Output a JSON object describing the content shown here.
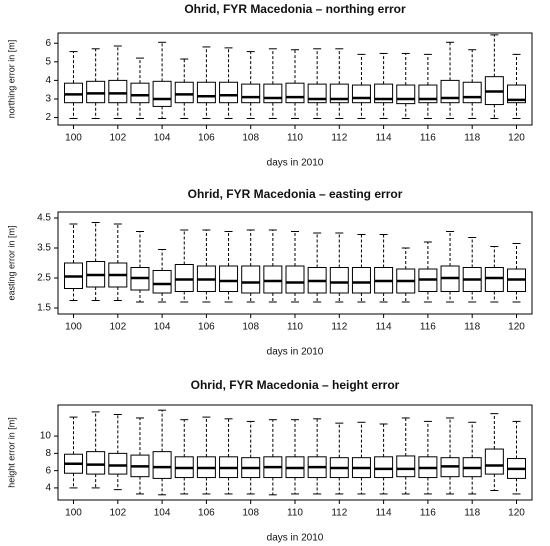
{
  "chart_data": [
    {
      "type": "box",
      "title": "Ohrid, FYR Macedonia – northing error",
      "x_label": "days in 2010",
      "y_label": "northing error in [m]",
      "x": [
        100,
        101,
        102,
        103,
        104,
        105,
        106,
        107,
        108,
        109,
        110,
        111,
        112,
        113,
        114,
        115,
        116,
        117,
        118,
        119,
        120
      ],
      "xlim": [
        99.3,
        120.7
      ],
      "xticks": [
        100,
        102,
        104,
        106,
        108,
        110,
        112,
        114,
        116,
        118,
        120
      ],
      "ylim": [
        1.6,
        6.55
      ],
      "yticks": [
        2,
        3,
        4,
        5,
        6
      ],
      "color": "#ffffff",
      "line_color": "#000000",
      "min": [
        1.95,
        1.95,
        1.95,
        1.95,
        1.95,
        1.95,
        1.95,
        1.95,
        1.95,
        1.95,
        1.95,
        1.95,
        1.95,
        1.95,
        1.95,
        1.95,
        1.95,
        1.95,
        1.95,
        1.95,
        1.95
      ],
      "q1": [
        2.8,
        2.8,
        2.8,
        2.8,
        2.6,
        2.8,
        2.8,
        2.8,
        2.8,
        2.8,
        2.8,
        2.8,
        2.8,
        2.8,
        2.8,
        2.75,
        2.8,
        2.8,
        2.8,
        2.7,
        2.8
      ],
      "median": [
        3.25,
        3.3,
        3.3,
        3.2,
        3.0,
        3.25,
        3.15,
        3.2,
        3.1,
        3.05,
        3.1,
        3.0,
        3.0,
        3.05,
        3.0,
        3.0,
        3.0,
        3.05,
        3.1,
        3.4,
        2.95
      ],
      "q3": [
        3.85,
        3.95,
        4.0,
        3.85,
        3.95,
        3.9,
        3.9,
        3.9,
        3.8,
        3.8,
        3.85,
        3.8,
        3.8,
        3.75,
        3.8,
        3.75,
        3.75,
        4.0,
        3.9,
        4.2,
        3.75
      ],
      "max": [
        5.55,
        5.7,
        5.85,
        5.2,
        6.05,
        5.15,
        5.8,
        5.75,
        5.55,
        5.7,
        5.65,
        5.7,
        5.7,
        5.4,
        5.45,
        5.45,
        5.4,
        6.05,
        5.65,
        6.45,
        5.4
      ]
    },
    {
      "type": "box",
      "title": "Ohrid, FYR Macedonia – easting error",
      "x_label": "days in 2010",
      "y_label": "easting error in [m]",
      "x": [
        100,
        101,
        102,
        103,
        104,
        105,
        106,
        107,
        108,
        109,
        110,
        111,
        112,
        113,
        114,
        115,
        116,
        117,
        118,
        119,
        120
      ],
      "xlim": [
        99.3,
        120.7
      ],
      "xticks": [
        100,
        102,
        104,
        106,
        108,
        110,
        112,
        114,
        116,
        118,
        120
      ],
      "ylim": [
        1.3,
        4.7
      ],
      "yticks": [
        1.5,
        2.5,
        3.5,
        4.5
      ],
      "color": "#ffffff",
      "line_color": "#000000",
      "min": [
        1.75,
        1.75,
        1.75,
        1.7,
        1.7,
        1.7,
        1.7,
        1.7,
        1.7,
        1.7,
        1.7,
        1.7,
        1.7,
        1.7,
        1.7,
        1.7,
        1.7,
        1.7,
        1.7,
        1.7,
        1.7
      ],
      "q1": [
        2.15,
        2.2,
        2.2,
        2.1,
        2.0,
        2.05,
        2.05,
        2.05,
        2.0,
        2.0,
        2.0,
        2.0,
        2.0,
        2.0,
        2.0,
        2.0,
        2.05,
        2.05,
        2.05,
        2.05,
        2.05
      ],
      "median": [
        2.55,
        2.6,
        2.6,
        2.5,
        2.3,
        2.45,
        2.45,
        2.4,
        2.35,
        2.4,
        2.35,
        2.4,
        2.35,
        2.35,
        2.4,
        2.4,
        2.45,
        2.5,
        2.45,
        2.5,
        2.45
      ],
      "q3": [
        3.0,
        3.05,
        3.0,
        2.85,
        2.75,
        2.95,
        2.9,
        2.9,
        2.9,
        2.9,
        2.9,
        2.85,
        2.85,
        2.85,
        2.85,
        2.8,
        2.8,
        2.9,
        2.85,
        2.85,
        2.8
      ],
      "max": [
        4.3,
        4.35,
        4.3,
        4.05,
        3.45,
        4.1,
        4.1,
        4.05,
        4.1,
        4.1,
        4.05,
        4.0,
        4.0,
        3.95,
        3.95,
        3.5,
        3.7,
        4.05,
        3.85,
        3.55,
        3.65
      ]
    },
    {
      "type": "box",
      "title": "Ohrid, FYR Macedonia – height error",
      "x_label": "days in 2010",
      "y_label": "height error in [m]",
      "x": [
        100,
        101,
        102,
        103,
        104,
        105,
        106,
        107,
        108,
        109,
        110,
        111,
        112,
        113,
        114,
        115,
        116,
        117,
        118,
        119,
        120
      ],
      "xlim": [
        99.3,
        120.7
      ],
      "xticks": [
        100,
        102,
        104,
        106,
        108,
        110,
        112,
        114,
        116,
        118,
        120
      ],
      "ylim": [
        2.6,
        13.6
      ],
      "yticks": [
        4,
        6,
        8,
        10
      ],
      "color": "#ffffff",
      "line_color": "#000000",
      "min": [
        4.0,
        4.0,
        3.8,
        3.3,
        3.2,
        3.3,
        3.3,
        3.3,
        3.3,
        3.2,
        3.3,
        3.3,
        3.3,
        3.3,
        3.3,
        3.3,
        3.3,
        3.3,
        3.3,
        3.7,
        3.3
      ],
      "q1": [
        5.7,
        5.6,
        5.6,
        5.3,
        5.1,
        5.2,
        5.2,
        5.2,
        5.2,
        5.2,
        5.2,
        5.2,
        5.2,
        5.2,
        5.2,
        5.3,
        5.2,
        5.3,
        5.3,
        5.6,
        5.1
      ],
      "median": [
        6.8,
        6.7,
        6.6,
        6.5,
        6.4,
        6.3,
        6.3,
        6.3,
        6.3,
        6.4,
        6.3,
        6.4,
        6.3,
        6.3,
        6.2,
        6.2,
        6.3,
        6.5,
        6.3,
        6.6,
        6.2
      ],
      "q3": [
        7.9,
        8.2,
        8.0,
        7.8,
        8.2,
        7.6,
        7.6,
        7.6,
        7.5,
        7.6,
        7.6,
        7.6,
        7.5,
        7.5,
        7.6,
        7.7,
        7.6,
        7.5,
        7.5,
        8.5,
        7.4
      ],
      "max": [
        12.2,
        12.8,
        12.5,
        12.1,
        13.0,
        11.9,
        12.2,
        12.0,
        11.7,
        11.9,
        11.9,
        12.0,
        11.5,
        11.6,
        11.4,
        12.1,
        11.7,
        12.1,
        11.6,
        12.6,
        11.7
      ]
    }
  ]
}
